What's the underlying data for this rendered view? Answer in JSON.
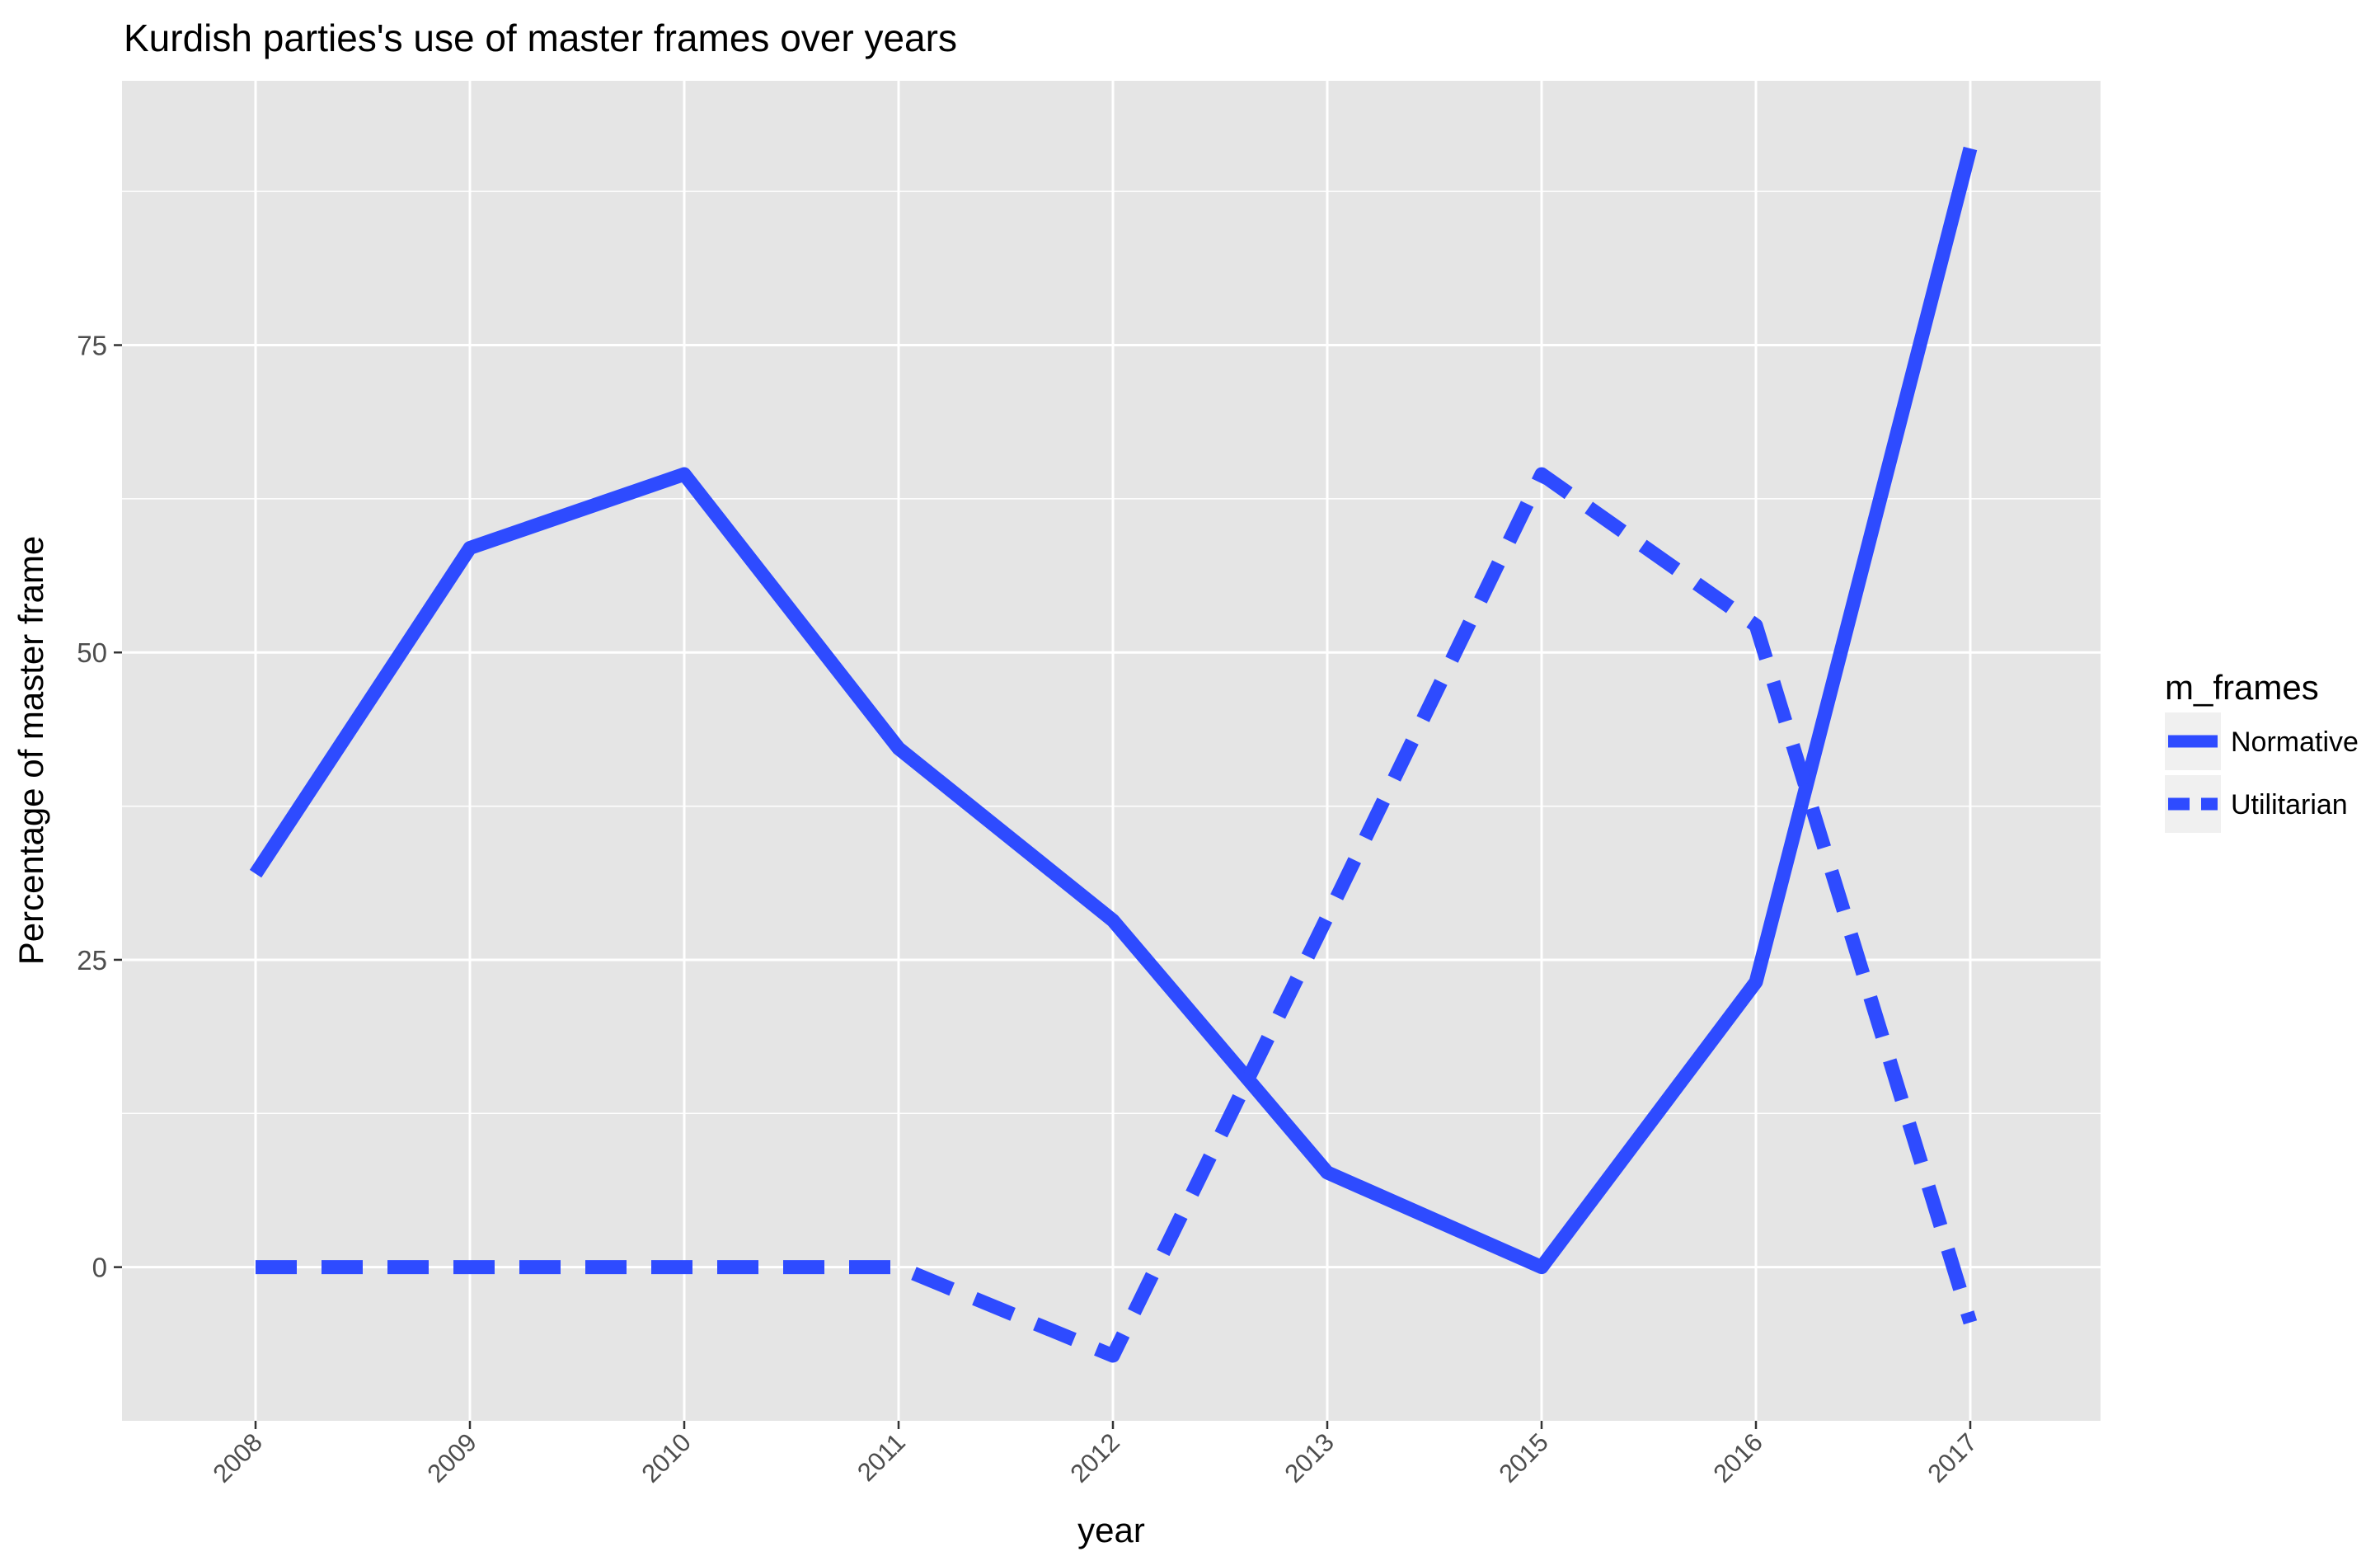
{
  "chart_data": {
    "type": "line",
    "title": "Kurdish parties's use of master frames over years",
    "xlabel": "year",
    "ylabel": "Percentage of master frame",
    "categories": [
      "2008",
      "2009",
      "2010",
      "2011",
      "2012",
      "2013",
      "2015",
      "2016",
      "2017"
    ],
    "y_ticks": [
      0,
      25,
      50,
      75
    ],
    "ylim": [
      -12.5,
      96.5
    ],
    "grid": true,
    "legend": {
      "title": "m_frames",
      "position": "right"
    },
    "series": [
      {
        "name": "Normative",
        "linestyle": "solid",
        "color": "#2e4bff",
        "values": [
          32,
          58.5,
          64.5,
          42.2,
          28.2,
          7.7,
          0,
          23.2,
          91
        ]
      },
      {
        "name": "Utilitarian",
        "linestyle": "dashed",
        "color": "#2e4bff",
        "values": [
          0,
          0,
          0,
          0,
          -7.2,
          28.5,
          64.5,
          52.2,
          -4.5
        ]
      }
    ],
    "colors": {
      "panel_background": "#e5e5e5",
      "grid_line": "#ffffff",
      "text": "#000000",
      "tick_text": "#4d4d4d",
      "legend_key_background": "#f0f0f0"
    }
  }
}
